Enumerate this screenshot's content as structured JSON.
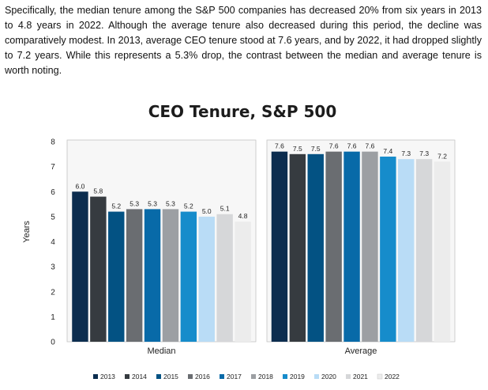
{
  "intro_text": "Specifically, the median tenure among the S&P 500 companies has decreased 20% from six years in 2013 to 4.8 years in 2022. Although the average tenure also decreased during this period, the decline was comparatively modest. In 2013, average CEO tenure stood at 7.6 years, and by 2022, it had dropped slightly to 7.2 years. While this represents a 5.3% drop, the contrast between the median and average tenure is worth noting.",
  "chart_data": {
    "type": "bar",
    "title": "CEO Tenure, S&P 500",
    "xlabel": "",
    "ylabel": "Years",
    "ylim": [
      0,
      8
    ],
    "yticks": [
      "0",
      "1",
      "2",
      "3",
      "4",
      "5",
      "6",
      "7",
      "8"
    ],
    "grid": false,
    "legend_position": "bottom",
    "categories": [
      "Median",
      "Average"
    ],
    "series": [
      {
        "name": "2013",
        "values": [
          6.0,
          7.6
        ],
        "labels": [
          "6.0",
          "7.6"
        ],
        "color": "#0c2d4f"
      },
      {
        "name": "2014",
        "values": [
          5.8,
          7.5
        ],
        "labels": [
          "5.8",
          "7.5"
        ],
        "color": "#363b40"
      },
      {
        "name": "2015",
        "values": [
          5.2,
          7.5
        ],
        "labels": [
          "5.2",
          "7.5"
        ],
        "color": "#035283"
      },
      {
        "name": "2016",
        "values": [
          5.3,
          7.6
        ],
        "labels": [
          "5.3",
          "7.6"
        ],
        "color": "#6a6d71"
      },
      {
        "name": "2017",
        "values": [
          5.3,
          7.6
        ],
        "labels": [
          "5.3",
          "7.6"
        ],
        "color": "#086aa8"
      },
      {
        "name": "2018",
        "values": [
          5.3,
          7.6
        ],
        "labels": [
          "5.3",
          "7.6"
        ],
        "color": "#9c9fa3"
      },
      {
        "name": "2019",
        "values": [
          5.2,
          7.4
        ],
        "labels": [
          "5.2",
          "7.4"
        ],
        "color": "#168ccb"
      },
      {
        "name": "2020",
        "values": [
          5.0,
          7.3
        ],
        "labels": [
          "5.0",
          "7.3"
        ],
        "color": "#b9dcf6"
      },
      {
        "name": "2021",
        "values": [
          5.1,
          7.3
        ],
        "labels": [
          "5.1",
          "7.3"
        ],
        "color": "#d6d7d9"
      },
      {
        "name": "2022",
        "values": [
          4.8,
          7.2
        ],
        "labels": [
          "4.8",
          "7.2"
        ],
        "color": "#ececec"
      }
    ]
  }
}
